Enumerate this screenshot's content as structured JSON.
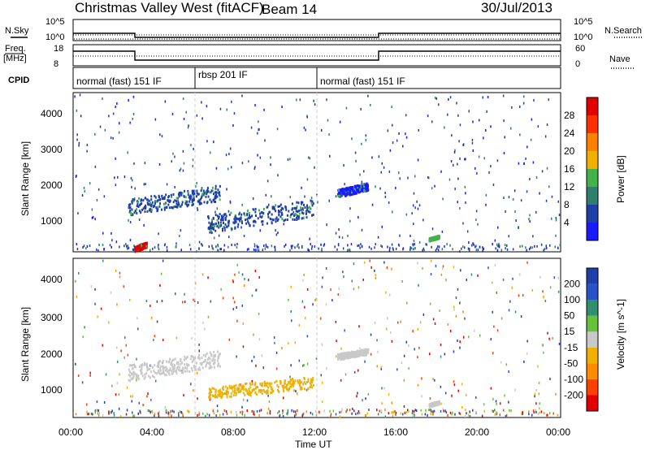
{
  "header": {
    "title": "Christmas Valley West (fitACF)",
    "beam": "Beam 14",
    "date": "30/Jul/2013"
  },
  "status_panels": {
    "nsky_label": "N.Sky",
    "nsearch_label": "N.Search",
    "freq_label_1": "Freq.",
    "freq_label_2": "[MHz]",
    "nave_label": "Nave",
    "cpid_label": "CPID",
    "noise_ticks_left": [
      "10^5",
      "10^0"
    ],
    "noise_ticks_right": [
      "10^5",
      "10^0"
    ],
    "freq_ticks": [
      "18",
      "8"
    ],
    "nave_ticks": [
      "60",
      "0"
    ],
    "cpid_segments": [
      {
        "label": "normal (fast) 151 IF",
        "start_hour": 0,
        "end_hour": 6
      },
      {
        "label": "rbsp 201 IF",
        "start_hour": 6,
        "end_hour": 12
      },
      {
        "label": "normal (fast) 151 IF",
        "start_hour": 12,
        "end_hour": 24
      }
    ]
  },
  "axes": {
    "xlabel": "Time UT",
    "x_ticks": [
      "00:00",
      "04:00",
      "08:00",
      "12:00",
      "16:00",
      "20:00",
      "00:00"
    ],
    "ylabel": "Slant Range [km]",
    "y_ticks": [
      "1000",
      "2000",
      "3000",
      "4000"
    ]
  },
  "colorbars": {
    "power": {
      "title": "Power [dB]",
      "labels": [
        "4",
        "8",
        "12",
        "16",
        "20",
        "24",
        "28"
      ],
      "colors": [
        "#1a1aff",
        "#1f3fa8",
        "#2f7f6f",
        "#44b24a",
        "#f0b000",
        "#ff7f00",
        "#ff3000",
        "#e00000"
      ]
    },
    "velocity": {
      "title": "Velocity [m s^-1]",
      "labels": [
        "200",
        "100",
        "50",
        "15",
        "-15",
        "-50",
        "-100",
        "-200"
      ],
      "colors": [
        "#1f3fa8",
        "#2a52c8",
        "#2f8f6f",
        "#66c23a",
        "#c8c8c8",
        "#f0b000",
        "#ff8c00",
        "#ff4000",
        "#e00000"
      ]
    }
  },
  "chart_data": {
    "type": "heatmap",
    "title": "Christmas Valley West (fitACF)",
    "xlabel": "Time UT",
    "ylabel": "Slant Range [km]",
    "xlim_hours": [
      0,
      24
    ],
    "ylim_km": [
      180,
      4600
    ],
    "series": [
      {
        "name": "Power [dB]",
        "clusters": [
          {
            "t0": 2.7,
            "t1": 7.2,
            "r0": 1200,
            "r1": 2000,
            "level": "8-12"
          },
          {
            "t0": 6.6,
            "t1": 11.8,
            "r0": 700,
            "r1": 1600,
            "level": "8-12"
          },
          {
            "t0": 13.0,
            "t1": 14.5,
            "r0": 1700,
            "r1": 2100,
            "level": "4-8"
          },
          {
            "t0": 17.5,
            "t1": 18.0,
            "r0": 500,
            "r1": 650,
            "level": "12-16"
          },
          {
            "t0": 3.0,
            "t1": 3.6,
            "r0": 200,
            "r1": 450,
            "level": "24-28"
          }
        ]
      },
      {
        "name": "Velocity [m s^-1]",
        "clusters": [
          {
            "t0": 2.7,
            "t1": 7.2,
            "r0": 1200,
            "r1": 2000,
            "level": "-15 to 15"
          },
          {
            "t0": 6.6,
            "t1": 11.8,
            "r0": 700,
            "r1": 1300,
            "level": "-50 to -15"
          },
          {
            "t0": 13.0,
            "t1": 14.5,
            "r0": 1800,
            "r1": 2100,
            "level": "-15 to 15"
          },
          {
            "t0": 17.5,
            "t1": 18.0,
            "r0": 500,
            "r1": 650,
            "level": "-15 to 15"
          }
        ]
      }
    ]
  }
}
